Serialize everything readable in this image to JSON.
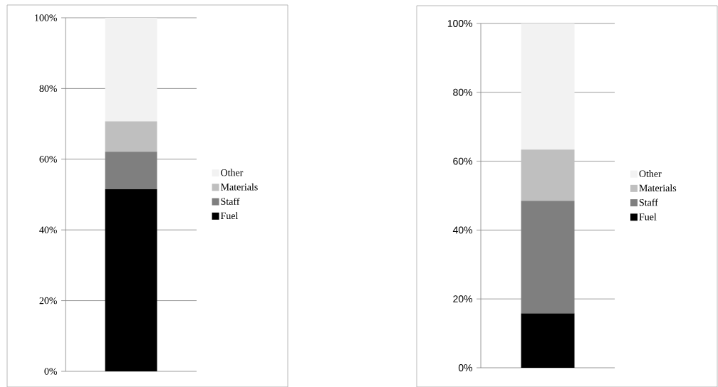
{
  "chart_data": [
    {
      "type": "bar",
      "stacked": true,
      "categories": [
        null
      ],
      "ylim": [
        0,
        100
      ],
      "yticks": [
        {
          "value": 0,
          "label": "0%"
        },
        {
          "value": 20,
          "label": "20%"
        },
        {
          "value": 40,
          "label": "40%"
        },
        {
          "value": 60,
          "label": "60%"
        },
        {
          "value": 80,
          "label": "80%"
        },
        {
          "value": 100,
          "label": "100%"
        }
      ],
      "grid": "y",
      "legend": "right",
      "series": [
        {
          "name": "Fuel",
          "color": "#000000",
          "values": [
            51.5
          ]
        },
        {
          "name": "Staff",
          "color": "#7f7f7f",
          "values": [
            10.6
          ]
        },
        {
          "name": "Materials",
          "color": "#bfbfbf",
          "values": [
            8.6
          ]
        },
        {
          "name": "Other",
          "color": "#f2f2f2",
          "values": [
            29.3
          ]
        }
      ]
    },
    {
      "type": "bar",
      "stacked": true,
      "categories": [
        null
      ],
      "ylim": [
        0,
        100
      ],
      "yticks": [
        {
          "value": 0,
          "label": "0%"
        },
        {
          "value": 20,
          "label": "20%"
        },
        {
          "value": 40,
          "label": "40%"
        },
        {
          "value": 60,
          "label": "60%"
        },
        {
          "value": 80,
          "label": "80%"
        },
        {
          "value": 100,
          "label": "100%"
        }
      ],
      "grid": "y",
      "legend": "right",
      "series": [
        {
          "name": "Fuel",
          "color": "#000000",
          "values": [
            15.8
          ]
        },
        {
          "name": "Staff",
          "color": "#7f7f7f",
          "values": [
            32.7
          ]
        },
        {
          "name": "Materials",
          "color": "#bfbfbf",
          "values": [
            14.9
          ]
        },
        {
          "name": "Other",
          "color": "#f2f2f2",
          "values": [
            36.6
          ]
        }
      ]
    }
  ]
}
